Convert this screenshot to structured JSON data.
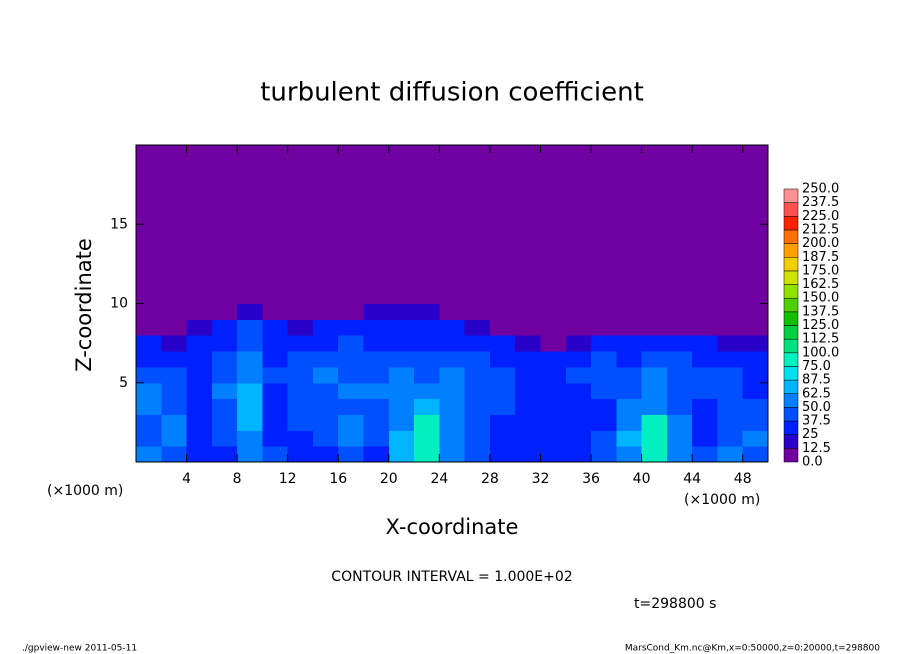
{
  "chart_data": {
    "type": "heatmap",
    "title": "turbulent diffusion coefficient",
    "x_label": "X-coordinate",
    "y_label": "Z-coordinate",
    "x_unit": "(×1000 m)",
    "x_unit_right": "(×1000 m)",
    "contour_note": "CONTOUR INTERVAL = 1.000E+02",
    "time_label": "t=298800 s",
    "footer_left": "./gpview-new  2011-05-11",
    "footer_right": "MarsCond_Km.nc@Km,x=0:50000,z=0:20000,t=298800",
    "xlim": [
      0,
      50
    ],
    "ylim": [
      0,
      20
    ],
    "xticks": [
      4,
      8,
      12,
      16,
      20,
      24,
      28,
      32,
      36,
      40,
      44,
      48
    ],
    "yticks": [
      5,
      10,
      15
    ],
    "x_edges": [
      0,
      2,
      4,
      6,
      8,
      10,
      12,
      14,
      16,
      18,
      20,
      22,
      24,
      26,
      28,
      30,
      32,
      34,
      36,
      38,
      40,
      42,
      44,
      46,
      48,
      50
    ],
    "z_edges": [
      0,
      1,
      2,
      3,
      4,
      5,
      6,
      7,
      8,
      9,
      10,
      20
    ],
    "values": [
      [
        50,
        40,
        30,
        25,
        60,
        40,
        25,
        30,
        40,
        30,
        70,
        80,
        60,
        40,
        30,
        25,
        25,
        30,
        40,
        60,
        80,
        50,
        40,
        50,
        40
      ],
      [
        40,
        50,
        30,
        40,
        60,
        30,
        30,
        40,
        50,
        40,
        70,
        90,
        60,
        40,
        30,
        25,
        25,
        30,
        40,
        70,
        90,
        60,
        30,
        40,
        50
      ],
      [
        45,
        55,
        35,
        40,
        70,
        30,
        40,
        45,
        50,
        45,
        60,
        80,
        50,
        40,
        35,
        30,
        30,
        25,
        35,
        60,
        80,
        50,
        30,
        40,
        45
      ],
      [
        50,
        40,
        30,
        45,
        70,
        30,
        45,
        40,
        45,
        40,
        60,
        70,
        55,
        40,
        40,
        30,
        25,
        30,
        30,
        50,
        60,
        40,
        35,
        45,
        40
      ],
      [
        55,
        40,
        35,
        50,
        65,
        35,
        40,
        45,
        50,
        50,
        60,
        55,
        55,
        40,
        45,
        30,
        30,
        35,
        40,
        40,
        55,
        45,
        40,
        40,
        35
      ],
      [
        40,
        40,
        30,
        45,
        60,
        40,
        45,
        50,
        40,
        45,
        50,
        45,
        50,
        45,
        40,
        35,
        35,
        40,
        45,
        40,
        50,
        45,
        45,
        40,
        35
      ],
      [
        30,
        35,
        30,
        40,
        55,
        35,
        40,
        45,
        40,
        40,
        45,
        40,
        45,
        40,
        35,
        30,
        30,
        35,
        40,
        35,
        40,
        40,
        35,
        30,
        30
      ],
      [
        25,
        20,
        25,
        30,
        45,
        30,
        30,
        35,
        40,
        35,
        30,
        30,
        35,
        30,
        25,
        15,
        10,
        20,
        25,
        25,
        30,
        25,
        25,
        20,
        15
      ],
      [
        0,
        0,
        15,
        25,
        40,
        30,
        20,
        25,
        30,
        30,
        25,
        25,
        25,
        20,
        0,
        0,
        0,
        0,
        0,
        0,
        0,
        0,
        0,
        0,
        0
      ],
      [
        0,
        0,
        0,
        10,
        20,
        10,
        0,
        0,
        0,
        15,
        15,
        15,
        10,
        0,
        0,
        0,
        0,
        0,
        0,
        0,
        0,
        0,
        0,
        0,
        0
      ],
      [
        0,
        0,
        0,
        0,
        0,
        0,
        0,
        0,
        0,
        0,
        0,
        0,
        0,
        0,
        0,
        0,
        0,
        0,
        0,
        0,
        0,
        0,
        0,
        0,
        0
      ]
    ],
    "colorbar": {
      "levels": [
        {
          "value": 0,
          "label": "0.0"
        },
        12.5,
        25,
        37.5,
        {
          "value": 50,
          "label": "50.0"
        },
        62.5,
        87.5,
        {
          "value": 75,
          "label": "75.0"
        },
        {
          "value": 100,
          "label": "100.0"
        },
        112.5,
        {
          "value": 125,
          "label": "125.0"
        },
        137.5,
        {
          "value": 150,
          "label": "150.0"
        },
        162.5,
        {
          "value": 175,
          "label": "175.0"
        },
        187.5,
        {
          "value": 200,
          "label": "200.0"
        },
        212.5,
        {
          "value": 225,
          "label": "225.0"
        },
        237.5,
        {
          "value": 250,
          "label": "250.0"
        }
      ],
      "colors": [
        "#7000a0",
        "#2800c8",
        "#0020ff",
        "#0050ff",
        "#0080ff",
        "#00b4ff",
        "#00e0f0",
        "#00f0c0",
        "#00e080",
        "#00d040",
        "#10c000",
        "#50d000",
        "#90e000",
        "#d0e000",
        "#f0d000",
        "#ffa000",
        "#ff7000",
        "#ff2000",
        "#ff5050",
        "#ff9090"
      ]
    }
  }
}
